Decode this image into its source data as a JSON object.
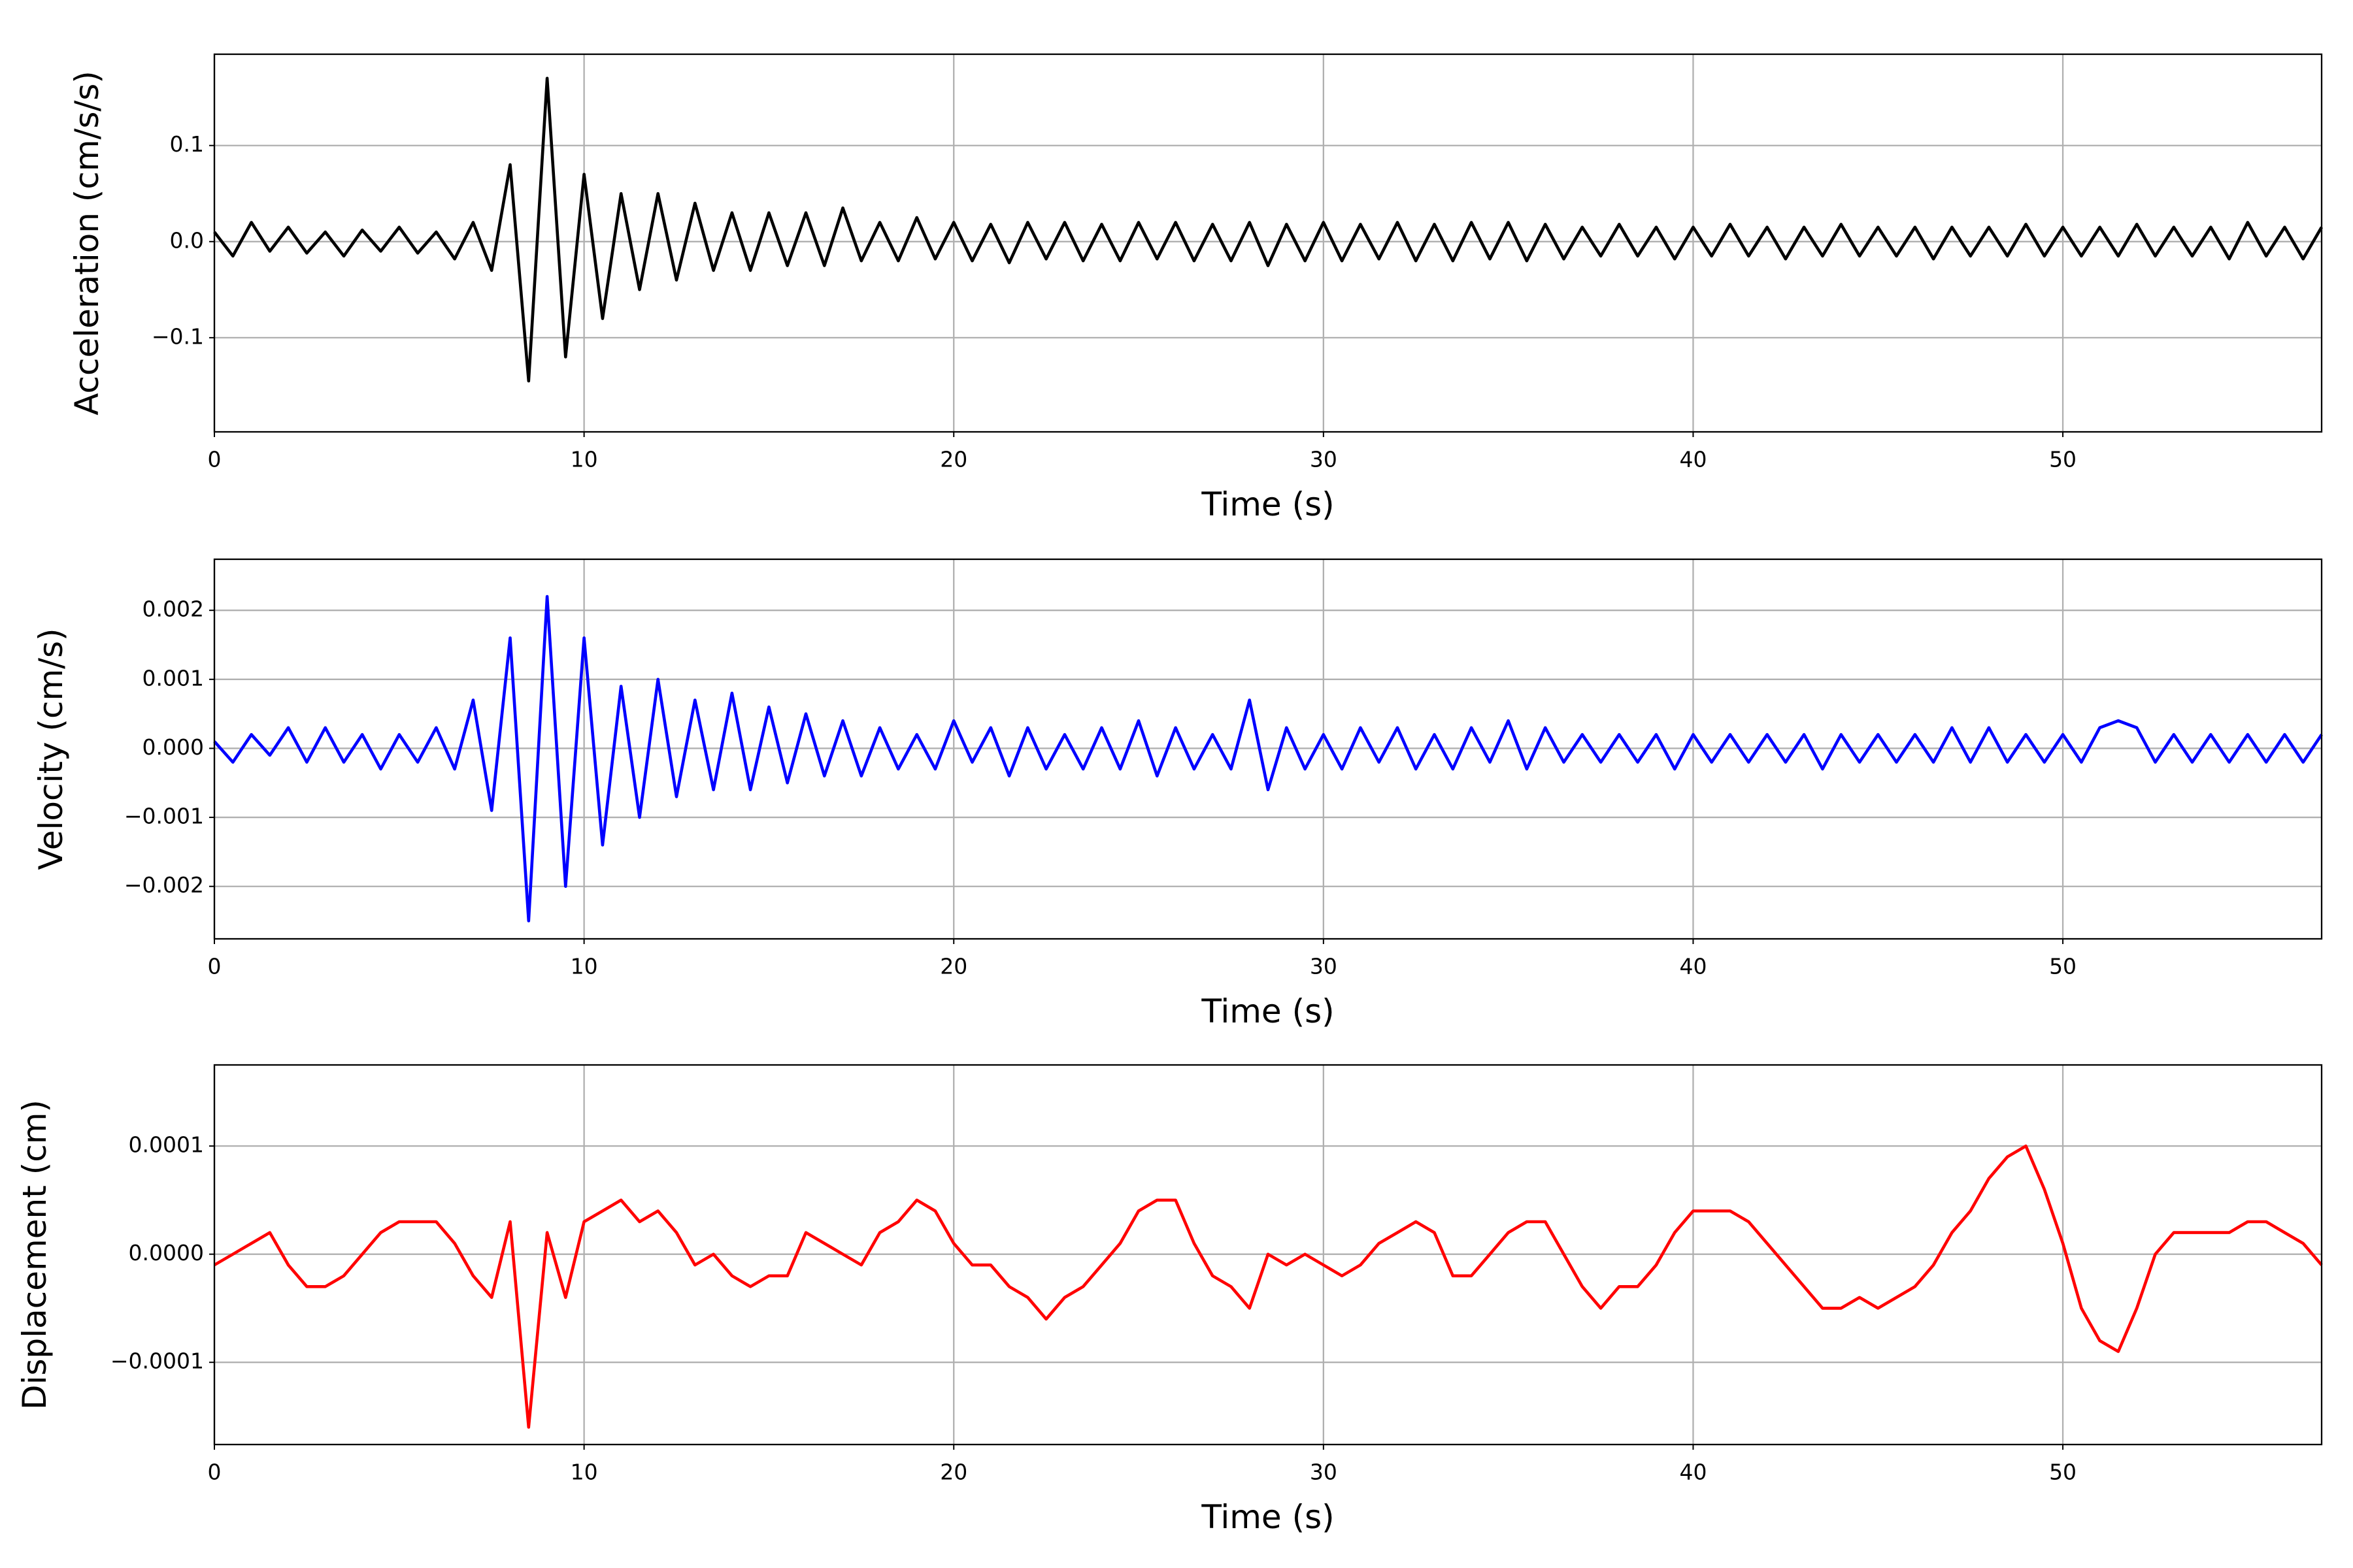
{
  "chart_data": [
    {
      "type": "line",
      "xlabel": "Time (s)",
      "ylabel": "Acceleration (cm/s/s)",
      "color": "#000000",
      "grid": true,
      "xlim": [
        0,
        57
      ],
      "xticks": [
        0,
        10,
        20,
        30,
        40,
        50
      ],
      "ylim": [
        -0.198,
        0.195
      ],
      "yticks": [
        {
          "value": -0.1,
          "label": "−0.1"
        },
        {
          "value": 0,
          "label": "0.0"
        },
        0.1
      ],
      "x": [
        0,
        0.5,
        1,
        1.5,
        2,
        2.5,
        3,
        3.5,
        4,
        4.5,
        5,
        5.5,
        6,
        6.5,
        7,
        7.5,
        8,
        8.5,
        9,
        9.5,
        10,
        10.5,
        11,
        11.5,
        12,
        12.5,
        13,
        13.5,
        14,
        14.5,
        15,
        15.5,
        16,
        16.5,
        17,
        17.5,
        18,
        18.5,
        19,
        19.5,
        20,
        20.5,
        21,
        21.5,
        22,
        22.5,
        23,
        23.5,
        24,
        24.5,
        25,
        25.5,
        26,
        26.5,
        27,
        27.5,
        28,
        28.5,
        29,
        29.5,
        30,
        30.5,
        31,
        31.5,
        32,
        32.5,
        33,
        33.5,
        34,
        34.5,
        35,
        35.5,
        36,
        36.5,
        37,
        37.5,
        38,
        38.5,
        39,
        39.5,
        40,
        40.5,
        41,
        41.5,
        42,
        42.5,
        43,
        43.5,
        44,
        44.5,
        45,
        45.5,
        46,
        46.5,
        47,
        47.5,
        48,
        48.5,
        49,
        49.5,
        50,
        50.5,
        51,
        51.5,
        52,
        52.5,
        53,
        53.5,
        54,
        54.5,
        55,
        55.5,
        56,
        56.5,
        57
      ],
      "values": [
        0.01,
        -0.015,
        0.02,
        -0.01,
        0.015,
        -0.012,
        0.01,
        -0.015,
        0.012,
        -0.01,
        0.015,
        -0.012,
        0.01,
        -0.018,
        0.02,
        -0.03,
        0.08,
        -0.145,
        0.17,
        -0.12,
        0.07,
        -0.08,
        0.05,
        -0.05,
        0.05,
        -0.04,
        0.04,
        -0.03,
        0.03,
        -0.03,
        0.03,
        -0.025,
        0.03,
        -0.025,
        0.035,
        -0.02,
        0.02,
        -0.02,
        0.025,
        -0.018,
        0.02,
        -0.02,
        0.018,
        -0.022,
        0.02,
        -0.018,
        0.02,
        -0.02,
        0.018,
        -0.02,
        0.02,
        -0.018,
        0.02,
        -0.02,
        0.018,
        -0.02,
        0.02,
        -0.025,
        0.018,
        -0.02,
        0.02,
        -0.02,
        0.018,
        -0.018,
        0.02,
        -0.02,
        0.018,
        -0.02,
        0.02,
        -0.018,
        0.02,
        -0.02,
        0.018,
        -0.018,
        0.015,
        -0.015,
        0.018,
        -0.015,
        0.015,
        -0.018,
        0.015,
        -0.015,
        0.018,
        -0.015,
        0.015,
        -0.018,
        0.015,
        -0.015,
        0.018,
        -0.015,
        0.015,
        -0.015,
        0.015,
        -0.018,
        0.015,
        -0.015,
        0.015,
        -0.015,
        0.018,
        -0.015,
        0.015,
        -0.015,
        0.015,
        -0.015,
        0.018,
        -0.015,
        0.015,
        -0.015,
        0.015,
        -0.018,
        0.02,
        -0.015,
        0.015,
        -0.018,
        0.015
      ]
    },
    {
      "type": "line",
      "xlabel": "Time (s)",
      "ylabel": "Velocity (cm/s)",
      "color": "#0000ff",
      "grid": true,
      "xlim": [
        0,
        57
      ],
      "xticks": [
        0,
        10,
        20,
        30,
        40,
        50
      ],
      "ylim": [
        -0.00276,
        0.00274
      ],
      "yticks": [
        {
          "value": -0.002,
          "label": "−0.002"
        },
        {
          "value": -0.001,
          "label": "−0.001"
        },
        {
          "value": 0,
          "label": "0.000"
        },
        0.001,
        0.002
      ],
      "x": [
        0,
        0.5,
        1,
        1.5,
        2,
        2.5,
        3,
        3.5,
        4,
        4.5,
        5,
        5.5,
        6,
        6.5,
        7,
        7.5,
        8,
        8.5,
        9,
        9.5,
        10,
        10.5,
        11,
        11.5,
        12,
        12.5,
        13,
        13.5,
        14,
        14.5,
        15,
        15.5,
        16,
        16.5,
        17,
        17.5,
        18,
        18.5,
        19,
        19.5,
        20,
        20.5,
        21,
        21.5,
        22,
        22.5,
        23,
        23.5,
        24,
        24.5,
        25,
        25.5,
        26,
        26.5,
        27,
        27.5,
        28,
        28.5,
        29,
        29.5,
        30,
        30.5,
        31,
        31.5,
        32,
        32.5,
        33,
        33.5,
        34,
        34.5,
        35,
        35.5,
        36,
        36.5,
        37,
        37.5,
        38,
        38.5,
        39,
        39.5,
        40,
        40.5,
        41,
        41.5,
        42,
        42.5,
        43,
        43.5,
        44,
        44.5,
        45,
        45.5,
        46,
        46.5,
        47,
        47.5,
        48,
        48.5,
        49,
        49.5,
        50,
        50.5,
        51,
        51.5,
        52,
        52.5,
        53,
        53.5,
        54,
        54.5,
        55,
        55.5,
        56,
        56.5,
        57
      ],
      "values": [
        0.0001,
        -0.0002,
        0.0002,
        -0.0001,
        0.0003,
        -0.0002,
        0.0003,
        -0.0002,
        0.0002,
        -0.0003,
        0.0002,
        -0.0002,
        0.0003,
        -0.0003,
        0.0007,
        -0.0009,
        0.0016,
        -0.0025,
        0.0022,
        -0.002,
        0.0016,
        -0.0014,
        0.0009,
        -0.001,
        0.001,
        -0.0007,
        0.0007,
        -0.0006,
        0.0008,
        -0.0006,
        0.0006,
        -0.0005,
        0.0005,
        -0.0004,
        0.0004,
        -0.0004,
        0.0003,
        -0.0003,
        0.0002,
        -0.0003,
        0.0004,
        -0.0002,
        0.0003,
        -0.0004,
        0.0003,
        -0.0003,
        0.0002,
        -0.0003,
        0.0003,
        -0.0003,
        0.0004,
        -0.0004,
        0.0003,
        -0.0003,
        0.0002,
        -0.0003,
        0.0007,
        -0.0006,
        0.0003,
        -0.0003,
        0.0002,
        -0.0003,
        0.0003,
        -0.0002,
        0.0003,
        -0.0003,
        0.0002,
        -0.0003,
        0.0003,
        -0.0002,
        0.0004,
        -0.0003,
        0.0003,
        -0.0002,
        0.0002,
        -0.0002,
        0.0002,
        -0.0002,
        0.0002,
        -0.0003,
        0.0002,
        -0.0002,
        0.0002,
        -0.0002,
        0.0002,
        -0.0002,
        0.0002,
        -0.0003,
        0.0002,
        -0.0002,
        0.0002,
        -0.0002,
        0.0002,
        -0.0002,
        0.0003,
        -0.0002,
        0.0003,
        -0.0002,
        0.0002,
        -0.0002,
        0.0002,
        -0.0002,
        0.0003,
        0.0004,
        0.0003,
        -0.0002,
        0.0002,
        -0.0002,
        0.0002,
        -0.0002,
        0.0002,
        -0.0002,
        0.0002,
        -0.0002,
        0.0002
      ]
    },
    {
      "type": "line",
      "xlabel": "Time (s)",
      "ylabel": "Displacement (cm)",
      "color": "#ff0000",
      "grid": true,
      "xlim": [
        0,
        57
      ],
      "xticks": [
        0,
        10,
        20,
        30,
        40,
        50
      ],
      "ylim": [
        -0.000176,
        0.000175
      ],
      "yticks": [
        {
          "value": -0.0001,
          "label": "−0.0001"
        },
        {
          "value": 0,
          "label": "0.0000"
        },
        0.0001
      ],
      "x": [
        0,
        0.5,
        1,
        1.5,
        2,
        2.5,
        3,
        3.5,
        4,
        4.5,
        5,
        5.5,
        6,
        6.5,
        7,
        7.5,
        8,
        8.5,
        9,
        9.5,
        10,
        10.5,
        11,
        11.5,
        12,
        12.5,
        13,
        13.5,
        14,
        14.5,
        15,
        15.5,
        16,
        16.5,
        17,
        17.5,
        18,
        18.5,
        19,
        19.5,
        20,
        20.5,
        21,
        21.5,
        22,
        22.5,
        23,
        23.5,
        24,
        24.5,
        25,
        25.5,
        26,
        26.5,
        27,
        27.5,
        28,
        28.5,
        29,
        29.5,
        30,
        30.5,
        31,
        31.5,
        32,
        32.5,
        33,
        33.5,
        34,
        34.5,
        35,
        35.5,
        36,
        36.5,
        37,
        37.5,
        38,
        38.5,
        39,
        39.5,
        40,
        40.5,
        41,
        41.5,
        42,
        42.5,
        43,
        43.5,
        44,
        44.5,
        45,
        45.5,
        46,
        46.5,
        47,
        47.5,
        48,
        48.5,
        49,
        49.5,
        50,
        50.5,
        51,
        51.5,
        52,
        52.5,
        53,
        53.5,
        54,
        54.5,
        55,
        55.5,
        56,
        56.5,
        57
      ],
      "values": [
        -1e-05,
        0,
        1e-05,
        2e-05,
        -1e-05,
        -3e-05,
        -3e-05,
        -2e-05,
        0,
        2e-05,
        3e-05,
        3e-05,
        3e-05,
        1e-05,
        -2e-05,
        -4e-05,
        3e-05,
        -0.00016,
        2e-05,
        -4e-05,
        3e-05,
        4e-05,
        5e-05,
        3e-05,
        4e-05,
        2e-05,
        -1e-05,
        0,
        -2e-05,
        -3e-05,
        -2e-05,
        -2e-05,
        2e-05,
        1e-05,
        0,
        -1e-05,
        2e-05,
        3e-05,
        5e-05,
        4e-05,
        1e-05,
        -1e-05,
        -1e-05,
        -3e-05,
        -4e-05,
        -6e-05,
        -4e-05,
        -3e-05,
        -1e-05,
        1e-05,
        4e-05,
        5e-05,
        5e-05,
        1e-05,
        -2e-05,
        -3e-05,
        -5e-05,
        0,
        -1e-05,
        0,
        -1e-05,
        -2e-05,
        -1e-05,
        1e-05,
        2e-05,
        3e-05,
        2e-05,
        -2e-05,
        -2e-05,
        0,
        2e-05,
        3e-05,
        3e-05,
        0,
        -3e-05,
        -5e-05,
        -3e-05,
        -3e-05,
        -1e-05,
        2e-05,
        4e-05,
        4e-05,
        4e-05,
        3e-05,
        1e-05,
        -1e-05,
        -3e-05,
        -5e-05,
        -5e-05,
        -4e-05,
        -5e-05,
        -4e-05,
        -3e-05,
        -1e-05,
        2e-05,
        4e-05,
        7e-05,
        9e-05,
        0.0001,
        6e-05,
        1e-05,
        -5e-05,
        -8e-05,
        -9e-05,
        -5e-05,
        0,
        2e-05,
        2e-05,
        2e-05,
        2e-05,
        3e-05,
        3e-05,
        2e-05,
        1e-05,
        -1e-05
      ]
    }
  ]
}
